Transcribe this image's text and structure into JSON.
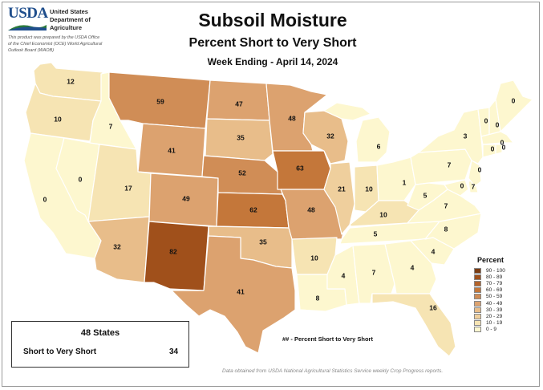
{
  "header": {
    "agency_name": "United States Department of Agriculture",
    "logo_text": "USDA",
    "credit": "This product was prepared by the USDA Office of the Chief Economist (OCE) World Agricultural Outlook Board (WAOB)"
  },
  "title": {
    "main": "Subsoil Moisture",
    "subtitle": "Percent Short to Very Short",
    "week": "Week Ending - April 14, 2024"
  },
  "legend": {
    "title": "Percent",
    "bins": [
      {
        "label": "90 - 100",
        "color": "#7b3d14"
      },
      {
        "label": "80 - 89",
        "color": "#a0501b"
      },
      {
        "label": "70 - 79",
        "color": "#b3632b"
      },
      {
        "label": "60 - 69",
        "color": "#c4773a"
      },
      {
        "label": "50 - 59",
        "color": "#d08d56"
      },
      {
        "label": "40 - 49",
        "color": "#dca26f"
      },
      {
        "label": "30 - 39",
        "color": "#e8bd8a"
      },
      {
        "label": "20 - 29",
        "color": "#efcf9d"
      },
      {
        "label": "10 - 19",
        "color": "#f6e4b3"
      },
      {
        "label": "0 - 9",
        "color": "#fdf7cf"
      }
    ]
  },
  "states": {
    "WA": 12,
    "OR": 10,
    "CA": 0,
    "NV": 0,
    "ID": 7,
    "MT": 59,
    "WY": 41,
    "UT": 17,
    "AZ": 32,
    "CO": 49,
    "NM": 82,
    "ND": 47,
    "SD": 35,
    "NE": 52,
    "KS": 62,
    "OK": 35,
    "TX": 41,
    "MN": 48,
    "IA": 63,
    "MO": 48,
    "AR": 10,
    "LA": 8,
    "WI": 32,
    "IL": 21,
    "MI": 6,
    "IN": 10,
    "OH": 1,
    "KY": 10,
    "TN": 5,
    "MS": 4,
    "AL": 7,
    "GA": 4,
    "FL": 16,
    "SC": 4,
    "NC": 8,
    "VA": 7,
    "WV": 5,
    "PA": 7,
    "NY": 3,
    "MD": 0,
    "DE": 7,
    "NJ": 0,
    "VT": 0,
    "NH": 0,
    "ME": 0,
    "MA": 0,
    "CT": 0,
    "RI": 0
  },
  "summary": {
    "heading": "48 States",
    "label": "Short to Very Short",
    "value": 34
  },
  "note": "## - Percent Short to Very Short",
  "source": "Data obtained from USDA National Agricultural Statistics Service weekly Crop Progress reports."
}
